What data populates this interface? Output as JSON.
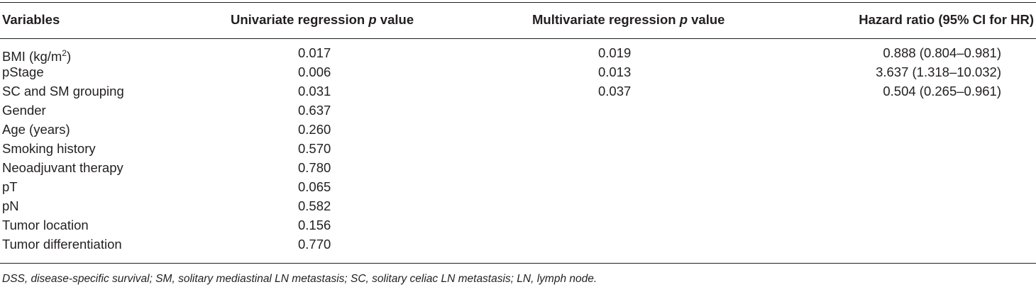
{
  "table": {
    "headers": {
      "variables": "Variables",
      "univariate_prefix": "Univariate regression ",
      "univariate_p": "p",
      "univariate_suffix": " value",
      "multivariate_prefix": "Multivariate regression ",
      "multivariate_p": "p",
      "multivariate_suffix": " value",
      "hazard": "Hazard ratio (95% CI for HR)"
    },
    "rows": [
      {
        "variable": "BMI (kg/m",
        "sup": "2",
        "variable_suffix": ")",
        "univariate": "0.017",
        "multivariate": "0.019",
        "hazard": "0.888 (0.804–0.981)"
      },
      {
        "variable": "pStage",
        "univariate": "0.006",
        "multivariate": "0.013",
        "hazard": "3.637 (1.318–10.032)"
      },
      {
        "variable": "SC and SM grouping",
        "univariate": "0.031",
        "multivariate": "0.037",
        "hazard": "0.504 (0.265–0.961)"
      },
      {
        "variable": "Gender",
        "univariate": "0.637",
        "multivariate": "",
        "hazard": ""
      },
      {
        "variable": "Age (years)",
        "univariate": "0.260",
        "multivariate": "",
        "hazard": ""
      },
      {
        "variable": "Smoking history",
        "univariate": "0.570",
        "multivariate": "",
        "hazard": ""
      },
      {
        "variable": "Neoadjuvant therapy",
        "univariate": "0.780",
        "multivariate": "",
        "hazard": ""
      },
      {
        "variable": "pT",
        "univariate": "0.065",
        "multivariate": "",
        "hazard": ""
      },
      {
        "variable": "pN",
        "univariate": "0.582",
        "multivariate": "",
        "hazard": ""
      },
      {
        "variable": "Tumor location",
        "univariate": "0.156",
        "multivariate": "",
        "hazard": ""
      },
      {
        "variable": "Tumor differentiation",
        "univariate": "0.770",
        "multivariate": "",
        "hazard": ""
      }
    ]
  },
  "footnote": "DSS, disease-specific survival; SM, solitary mediastinal LN metastasis; SC, solitary celiac LN metastasis; LN, lymph node."
}
